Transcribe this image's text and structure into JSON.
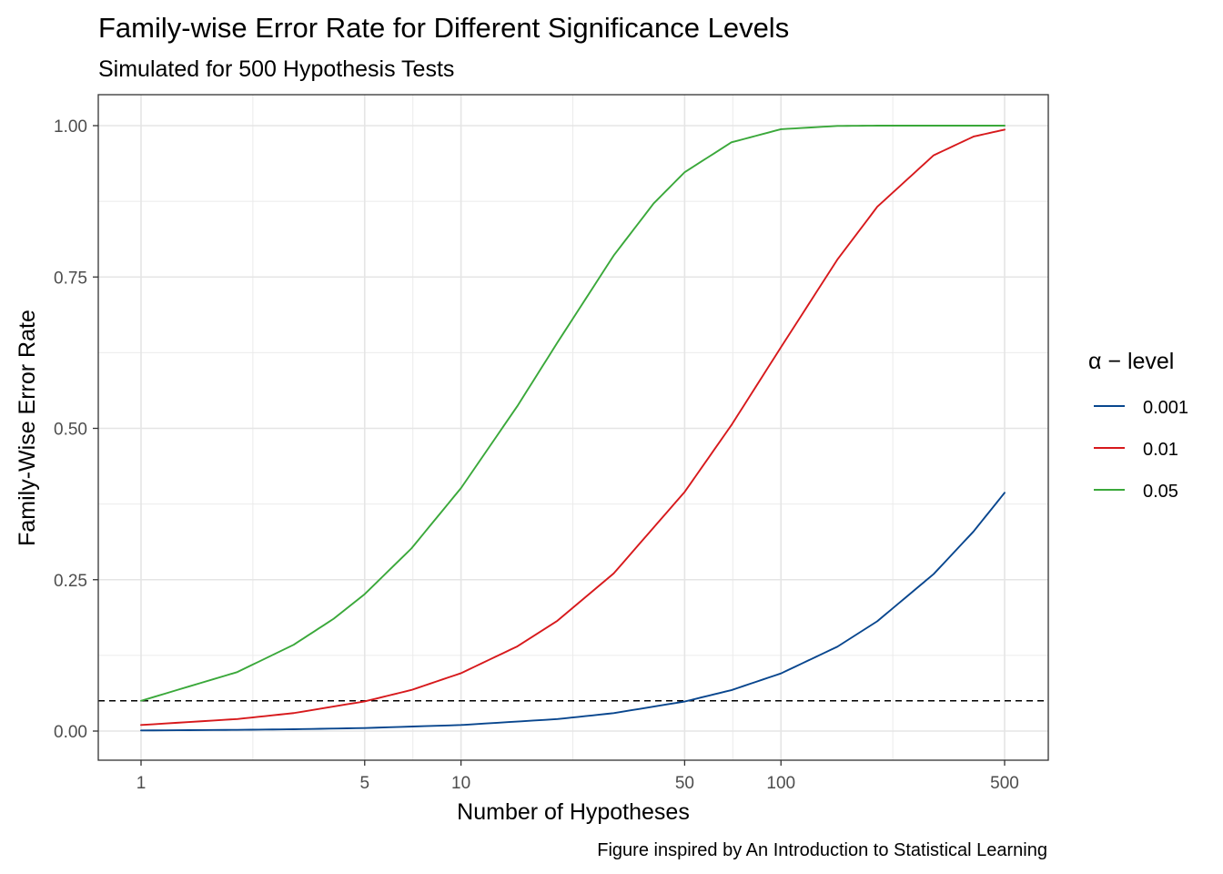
{
  "chart_data": {
    "type": "line",
    "title": "Family-wise Error Rate for Different Significance Levels",
    "subtitle": "Simulated for 500 Hypothesis Tests",
    "xlabel": "Number of Hypotheses",
    "ylabel": "Family-Wise Error Rate",
    "caption": "Figure inspired by An Introduction to Statistical Learning",
    "x_scale": "log10",
    "xlim": [
      1,
      500
    ],
    "ylim": [
      0,
      1
    ],
    "x_ticks": [
      1,
      5,
      10,
      50,
      100,
      500
    ],
    "x_tick_labels": [
      "1",
      "5",
      "10",
      "50",
      "100",
      "500"
    ],
    "y_ticks": [
      0,
      0.25,
      0.5,
      0.75,
      1.0
    ],
    "y_tick_labels": [
      "0.00",
      "0.25",
      "0.50",
      "0.75",
      "1.00"
    ],
    "grid": true,
    "legend": {
      "title": "α − level",
      "position": "right"
    },
    "reference_line": {
      "y": 0.05,
      "style": "dashed",
      "color": "#000000"
    },
    "series": [
      {
        "name": "0.001",
        "color": "#08468e",
        "x": [
          1,
          2,
          3,
          5,
          10,
          20,
          30,
          50,
          70,
          100,
          150,
          200,
          300,
          400,
          500
        ],
        "y": [
          0.001,
          0.002,
          0.003,
          0.005,
          0.01,
          0.0198,
          0.0296,
          0.0488,
          0.0676,
          0.0952,
          0.1393,
          0.1814,
          0.2593,
          0.3298,
          0.3936
        ]
      },
      {
        "name": "0.01",
        "color": "#d7191c",
        "x": [
          1,
          2,
          3,
          5,
          7,
          10,
          15,
          20,
          30,
          50,
          70,
          100,
          150,
          200,
          300,
          400,
          500
        ],
        "y": [
          0.01,
          0.0199,
          0.0297,
          0.049,
          0.0679,
          0.0956,
          0.1399,
          0.1821,
          0.2603,
          0.395,
          0.5053,
          0.634,
          0.7786,
          0.866,
          0.951,
          0.982,
          0.9934
        ]
      },
      {
        "name": "0.05",
        "color": "#3aa83a",
        "x": [
          1,
          2,
          3,
          4,
          5,
          7,
          10,
          15,
          20,
          30,
          40,
          50,
          70,
          100,
          150,
          200,
          300,
          500
        ],
        "y": [
          0.05,
          0.0975,
          0.1426,
          0.1855,
          0.2262,
          0.3017,
          0.4013,
          0.5367,
          0.6415,
          0.7854,
          0.8715,
          0.9231,
          0.9724,
          0.9941,
          0.9995,
          1.0,
          1.0,
          1.0
        ]
      }
    ]
  }
}
